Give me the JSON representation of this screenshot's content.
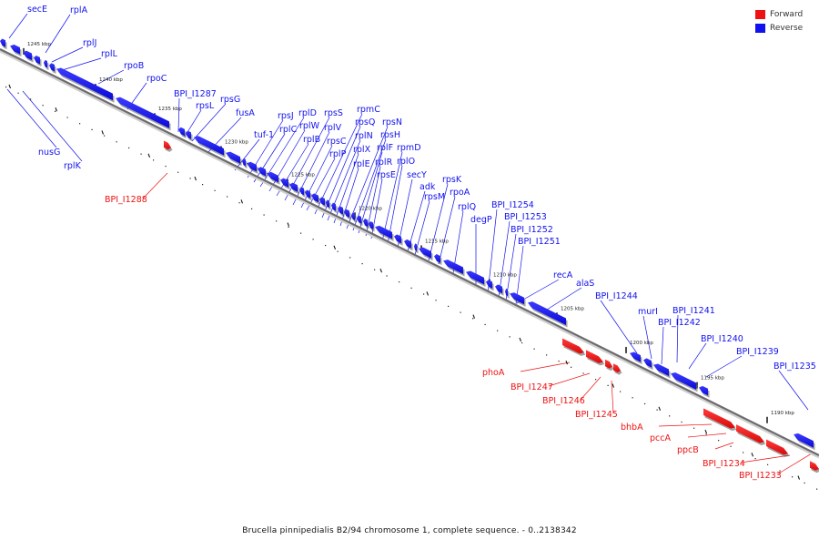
{
  "caption": "Brucella pinnipedialis B2/94 chromosome 1, complete sequence. - 0..2138342",
  "legend": [
    {
      "label": "Forward",
      "color": "#ee1111"
    },
    {
      "label": "Reverse",
      "color": "#1111ee"
    }
  ],
  "colors": {
    "forward": "#ee1111",
    "reverse": "#1111ee",
    "axis": "#6b6b6b"
  },
  "ticks": [
    "1245 kbp",
    "1240 kbp",
    "1235 kbp",
    "1230 kbp",
    "1225 kbp",
    "1220 kbp",
    "1215 kbp",
    "1210 kbp",
    "1205 kbp",
    "1200 kbp",
    "1195 kbp",
    "1190 kbp"
  ],
  "reverse_labels": [
    "secE",
    "rplA",
    "rplJ",
    "rplL",
    "rpoB",
    "rpoC",
    "BPI_I1287",
    "rpsL",
    "rpsG",
    "fusA",
    "tuf-1",
    "rpsJ",
    "rplC",
    "rplD",
    "rplW",
    "rplB",
    "rpsS",
    "rplV",
    "rpsC",
    "rplP",
    "rpmC",
    "rpsQ",
    "rplN",
    "rplX",
    "rplE",
    "rpsN",
    "rpsH",
    "rplF",
    "rplR",
    "rpsE",
    "rpmD",
    "rplO",
    "secY",
    "adk",
    "rpsM",
    "rpsK",
    "rpoA",
    "rplQ",
    "degP",
    "BPI_I1254",
    "BPI_I1253",
    "BPI_I1252",
    "BPI_I1251",
    "recA",
    "alaS",
    "BPI_I1244",
    "murI",
    "BPI_I1242",
    "BPI_I1241",
    "BPI_I1240",
    "BPI_I1239",
    "BPI_I1235",
    "nusG",
    "rplK"
  ],
  "forward_labels": [
    "BPI_I1288",
    "phoA",
    "BPI_I1247",
    "BPI_I1246",
    "BPI_I1245",
    "bhbA",
    "pccA",
    "ppcB",
    "BPI_I1234",
    "BPI_I1233"
  ]
}
